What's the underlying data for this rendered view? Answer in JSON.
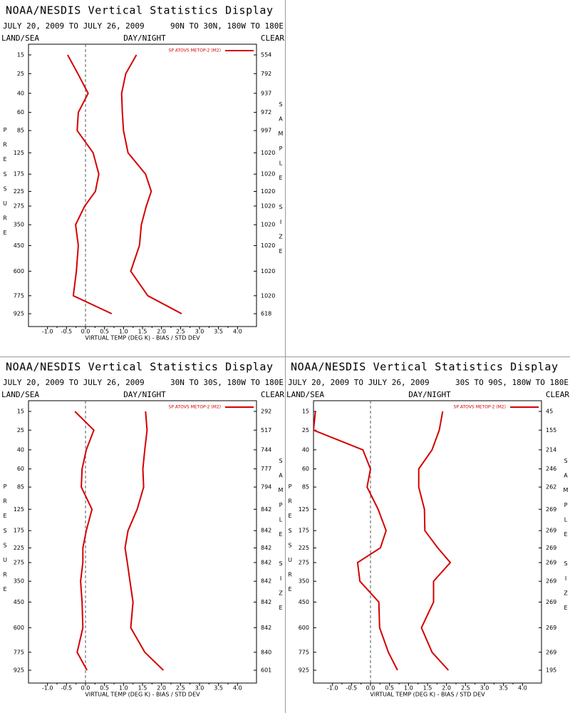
{
  "chart_data": [
    {
      "type": "line",
      "title": "NOAA/NESDIS Vertical Statistics Display",
      "subtitle": "JULY 20, 2009 TO JULY 26, 2009",
      "region": "90N TO 30N, 180W TO 180E",
      "land_sea_label": "LAND/SEA",
      "day_night_label": "DAY/NIGHT",
      "clear_label": "CLEAR",
      "ylabel": "PRESSURE",
      "y2label": "SAMPLE SIZE",
      "xlabel": "VIRTUAL TEMP (DEG K) - BIAS / STD DEV",
      "categories": [
        15,
        25,
        40,
        60,
        85,
        125,
        175,
        225,
        275,
        350,
        450,
        600,
        775,
        925
      ],
      "sample_size": [
        554,
        792,
        937,
        972,
        997,
        1020,
        1020,
        1020,
        1020,
        1020,
        1020,
        1020,
        1020,
        618
      ],
      "series": [
        {
          "name": "SP ATOVS METOP-2 (M2)",
          "color": "#d40000",
          "values": [
            -0.47,
            -0.2,
            0.07,
            -0.19,
            -0.22,
            0.2,
            0.35,
            0.26,
            -0.02,
            -0.26,
            -0.19,
            -0.24,
            -0.32,
            0.69
          ],
          "std_dev": [
            1.34,
            1.06,
            0.95,
            0.97,
            1.0,
            1.12,
            1.58,
            1.73,
            1.6,
            1.47,
            1.42,
            1.19,
            1.64,
            2.53
          ]
        }
      ],
      "xlim": [
        -1.5,
        4.5
      ],
      "xticks": [
        {
          "value": -1,
          "label": "-1.0"
        },
        -0.5,
        {
          "value": 0,
          "label": "0.0"
        },
        0.5,
        {
          "value": 1,
          "label": "1.0"
        },
        1.5,
        {
          "value": 2,
          "label": "2.0"
        },
        2.5,
        {
          "value": 3,
          "label": "3.0"
        },
        3.5,
        {
          "value": 4,
          "label": "4.0"
        }
      ]
    },
    {
      "type": "line",
      "title": "NOAA/NESDIS Vertical Statistics Display",
      "subtitle": "JULY 20, 2009 TO JULY 26, 2009",
      "region": "30N TO 30S, 180W TO 180E",
      "land_sea_label": "LAND/SEA",
      "day_night_label": "DAY/NIGHT",
      "clear_label": "CLEAR",
      "ylabel": "PRESSURE",
      "y2label": "SAMPLE SIZE",
      "xlabel": "VIRTUAL TEMP (DEG K) - BIAS / STD DEV",
      "categories": [
        15,
        25,
        40,
        60,
        85,
        125,
        175,
        225,
        275,
        350,
        450,
        600,
        775,
        925
      ],
      "sample_size": [
        292,
        517,
        744,
        777,
        794,
        842,
        842,
        842,
        842,
        842,
        842,
        842,
        840,
        601
      ],
      "series": [
        {
          "name": "SP ATOVS METOP-2 (M2)",
          "color": "#d40000",
          "values": [
            -0.28,
            0.22,
            0.02,
            -0.09,
            -0.11,
            0.17,
            0.02,
            -0.07,
            -0.07,
            -0.13,
            -0.09,
            -0.07,
            -0.22,
            0.04
          ],
          "std_dev": [
            1.58,
            1.62,
            1.56,
            1.51,
            1.53,
            1.36,
            1.12,
            1.04,
            1.1,
            1.17,
            1.25,
            1.19,
            1.56,
            2.05
          ]
        }
      ],
      "xlim": [
        -1.5,
        4.5
      ],
      "xticks": [
        {
          "value": -1,
          "label": "-1.0"
        },
        -0.5,
        {
          "value": 0,
          "label": "0.0"
        },
        0.5,
        {
          "value": 1,
          "label": "1.0"
        },
        1.5,
        {
          "value": 2,
          "label": "2.0"
        },
        2.5,
        {
          "value": 3,
          "label": "3.0"
        },
        3.5,
        {
          "value": 4,
          "label": "4.0"
        }
      ]
    },
    {
      "type": "line",
      "title": "NOAA/NESDIS Vertical Statistics Display",
      "subtitle": "JULY 20, 2009 TO JULY 26, 2009",
      "region": "30S TO 90S, 180W TO 180E",
      "land_sea_label": "LAND/SEA",
      "day_night_label": "DAY/NIGHT",
      "clear_label": "CLEAR",
      "ylabel": "PRESSURE",
      "y2label": "SAMPLE SIZE",
      "xlabel": "VIRTUAL TEMP (DEG K) - BIAS / STD DEV",
      "categories": [
        15,
        25,
        40,
        60,
        85,
        125,
        175,
        225,
        275,
        350,
        450,
        600,
        775,
        925
      ],
      "sample_size": [
        45,
        155,
        214,
        246,
        262,
        269,
        269,
        269,
        269,
        269,
        269,
        269,
        269,
        195
      ],
      "series": [
        {
          "name": "SP ATOVS METOP-2 (M2)",
          "color": "#d40000",
          "values": [
            -1.45,
            -1.5,
            -0.2,
            0.0,
            -0.09,
            0.2,
            0.41,
            0.26,
            -0.34,
            -0.28,
            0.22,
            0.24,
            0.47,
            0.71
          ],
          "std_dev": [
            1.9,
            1.81,
            1.62,
            1.27,
            1.27,
            1.42,
            1.43,
            1.77,
            2.1,
            1.66,
            1.66,
            1.34,
            1.62,
            2.05
          ]
        }
      ],
      "xlim": [
        -1.5,
        4.5
      ],
      "xticks": [
        {
          "value": -1,
          "label": "-1.0"
        },
        -0.5,
        {
          "value": 0,
          "label": "0.0"
        },
        0.5,
        {
          "value": 1,
          "label": "1.0"
        },
        1.5,
        {
          "value": 2,
          "label": "2.0"
        },
        2.5,
        {
          "value": 3,
          "label": "3.0"
        },
        3.5,
        {
          "value": 4,
          "label": "4.0"
        }
      ]
    }
  ]
}
